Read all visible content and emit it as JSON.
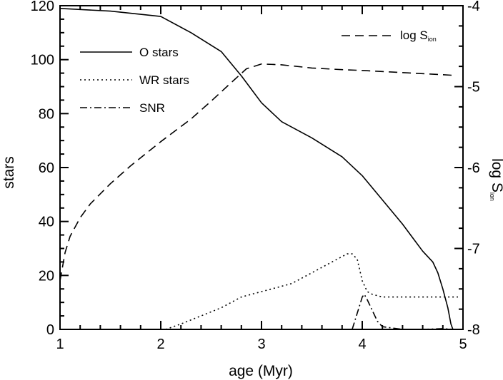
{
  "chart_data": {
    "type": "line",
    "xlabel": "age (Myr)",
    "ylabel": "stars",
    "y2label_main": "log S",
    "y2label_sub": "ion",
    "xlim": [
      1,
      5
    ],
    "ylim": [
      0,
      120
    ],
    "y2lim": [
      -8,
      -4
    ],
    "xticks": [
      1,
      2,
      3,
      4,
      5
    ],
    "yticks": [
      0,
      20,
      40,
      60,
      80,
      100,
      120
    ],
    "y2ticks": [
      -8,
      -7,
      -6,
      -5,
      -4
    ],
    "grid": false,
    "legend_left": [
      {
        "label": "O stars",
        "series": "o_stars",
        "style": "solid"
      },
      {
        "label": "WR stars",
        "series": "wr_stars",
        "style": "dotted"
      },
      {
        "label": "SNR",
        "series": "snr",
        "style": "dashdot"
      }
    ],
    "legend_right": {
      "label_main": "log S",
      "label_sub": "ion",
      "series": "log_sion",
      "style": "dashed"
    },
    "series": [
      {
        "name": "O stars",
        "id": "o_stars",
        "axis": "left",
        "style": "solid",
        "x": [
          1.0,
          1.5,
          2.0,
          2.3,
          2.6,
          2.8,
          3.0,
          3.2,
          3.5,
          3.8,
          4.0,
          4.2,
          4.4,
          4.5,
          4.6,
          4.7,
          4.75,
          4.8,
          4.85,
          4.88,
          4.9
        ],
        "y": [
          119,
          118,
          116,
          110,
          103,
          94,
          84,
          77,
          71,
          64,
          57,
          48,
          39,
          34,
          29,
          25,
          21,
          15,
          8,
          2,
          0
        ]
      },
      {
        "name": "WR stars",
        "id": "wr_stars",
        "axis": "left",
        "style": "dotted",
        "x": [
          2.05,
          2.2,
          2.4,
          2.6,
          2.8,
          3.0,
          3.1,
          3.3,
          3.5,
          3.7,
          3.85,
          3.9,
          3.95,
          4.0,
          4.05,
          4.1,
          4.2,
          4.4,
          4.6,
          4.8,
          4.95
        ],
        "y": [
          0,
          2,
          5,
          8,
          12,
          14,
          15,
          17,
          21,
          25,
          28,
          28,
          26,
          18,
          14,
          13,
          12,
          12,
          12,
          12,
          12
        ]
      },
      {
        "name": "SNR",
        "id": "snr",
        "axis": "left",
        "style": "dashdot",
        "x": [
          3.9,
          3.95,
          4.0,
          4.02,
          4.05,
          4.1,
          4.15,
          4.2,
          4.4,
          4.6,
          4.8,
          4.9,
          4.95
        ],
        "y": [
          0,
          6,
          12,
          13,
          11,
          7,
          3,
          1,
          0,
          0,
          0.3,
          0,
          0
        ]
      },
      {
        "name": "log S",
        "id": "log_sion",
        "axis": "right",
        "style": "dashed",
        "x": [
          1.0,
          1.05,
          1.1,
          1.2,
          1.3,
          1.5,
          1.7,
          2.0,
          2.3,
          2.5,
          2.7,
          2.85,
          3.0,
          3.2,
          3.5,
          3.8,
          4.0,
          4.3,
          4.6,
          4.9
        ],
        "y": [
          -7.4,
          -7.05,
          -6.85,
          -6.62,
          -6.45,
          -6.2,
          -5.98,
          -5.68,
          -5.4,
          -5.18,
          -4.95,
          -4.78,
          -4.72,
          -4.73,
          -4.77,
          -4.79,
          -4.8,
          -4.82,
          -4.84,
          -4.86
        ]
      }
    ]
  }
}
